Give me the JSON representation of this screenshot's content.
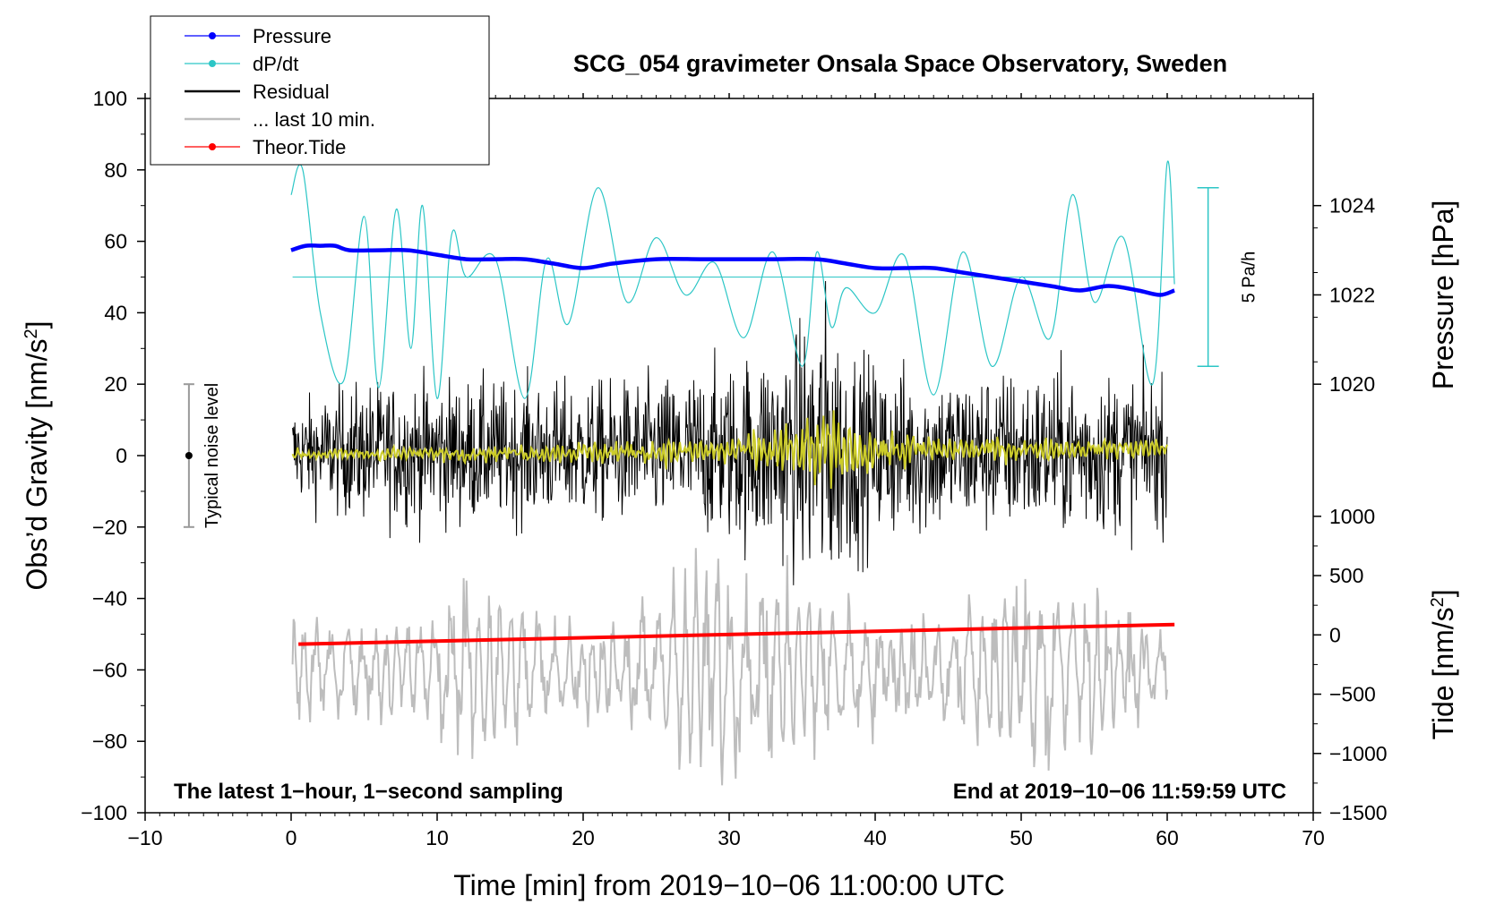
{
  "chart_data": {
    "type": "line",
    "title": "SCG_054 gravimeter Onsala Space Observatory, Sweden",
    "xlabel": "Time [min] from 2019−10−06 11:00:00 UTC",
    "ylabel_left": "Obs’d Gravity [nm/s",
    "ylabel_left_sup": "2",
    "ylabel_left_close": "]",
    "ylabel_right_pressure": "Pressure [hPa]",
    "ylabel_right_tide": "Tide [nm/s",
    "ylabel_right_tide_sup": "2",
    "ylabel_right_tide_close": "]",
    "xlim": [
      -10,
      70
    ],
    "ylim": [
      -100,
      100
    ],
    "x_ticks": [
      -10,
      0,
      10,
      20,
      30,
      40,
      50,
      60,
      70
    ],
    "x_tick_labels": [
      "−10",
      "0",
      "10",
      "20",
      "30",
      "40",
      "50",
      "60",
      "70"
    ],
    "y_ticks": [
      -100,
      -80,
      -60,
      -40,
      -20,
      0,
      20,
      40,
      60,
      80,
      100
    ],
    "y_tick_labels": [
      "−100",
      "−80",
      "−60",
      "−40",
      "−20",
      "0",
      "20",
      "40",
      "60",
      "80",
      "100"
    ],
    "pressure_axis": {
      "ticks": [
        1020,
        1022,
        1024
      ],
      "tick_labels": [
        "1020",
        "1022",
        "1024"
      ],
      "range": [
        1020,
        1024
      ],
      "gravity_equiv": [
        20,
        70
      ]
    },
    "tide_axis": {
      "ticks": [
        -1500,
        -1000,
        -500,
        0,
        500,
        1000
      ],
      "tick_labels": [
        "−1500",
        "−1000",
        "−500",
        "0",
        "500",
        "1000"
      ],
      "range": [
        -1500,
        1000
      ],
      "gravity_equiv": [
        -100,
        -17
      ]
    },
    "series": [
      {
        "name": "Pressure",
        "color": "#0000ff",
        "unit": "hPa",
        "x": [
          0,
          1,
          2,
          3,
          4,
          6,
          8,
          10,
          12,
          14,
          16,
          18,
          20,
          22,
          25,
          28,
          30,
          33,
          36,
          38,
          40,
          42,
          44,
          46,
          48,
          50,
          52,
          54,
          56,
          58,
          59.5,
          60.5
        ],
        "values": [
          1023.0,
          1023.1,
          1023.1,
          1023.1,
          1023.0,
          1023.0,
          1023.0,
          1022.9,
          1022.8,
          1022.8,
          1022.8,
          1022.7,
          1022.6,
          1022.7,
          1022.8,
          1022.8,
          1022.8,
          1022.8,
          1022.8,
          1022.7,
          1022.6,
          1022.6,
          1022.6,
          1022.5,
          1022.4,
          1022.3,
          1022.2,
          1022.1,
          1022.2,
          1022.1,
          1022.0,
          1022.1
        ]
      },
      {
        "name": "dP/dt",
        "color": "#2cc6c6",
        "unit": "gravity-frame",
        "baseline": 50,
        "x": [
          0,
          0.8,
          2,
          3.6,
          5,
          6,
          7.2,
          8.2,
          9,
          10,
          11,
          12,
          14,
          16,
          17.5,
          19,
          21,
          23,
          25,
          27,
          29,
          31,
          33,
          35,
          36,
          37,
          38,
          40,
          42,
          44,
          46,
          48,
          50,
          52,
          53.5,
          55,
          57,
          59,
          60,
          60.5
        ],
        "values": [
          73,
          80,
          40,
          21,
          67,
          19,
          69,
          30,
          70,
          16,
          62,
          50,
          55,
          16,
          55,
          37,
          75,
          43,
          61,
          45,
          54,
          33,
          57,
          25,
          57,
          36,
          47,
          40,
          56,
          17,
          57,
          25,
          50,
          33,
          73,
          43,
          61,
          20,
          82,
          48
        ]
      },
      {
        "name": "Residual",
        "color": "#000000",
        "unit": "nm/s2",
        "x": [
          0,
          5,
          10,
          15,
          20,
          25,
          30,
          35,
          36.5,
          38,
          40,
          45,
          50,
          55,
          60
        ],
        "amplitude": [
          12,
          17,
          18,
          17,
          17,
          18,
          22,
          30,
          40,
          28,
          22,
          20,
          20,
          20,
          18
        ]
      },
      {
        "name": "Residual (smoothed)",
        "color": "#cccc2a",
        "unit": "nm/s2",
        "x": [
          0,
          10,
          20,
          30,
          34,
          37,
          40,
          50,
          60
        ],
        "amplitude": [
          1,
          1.5,
          2,
          3,
          5,
          7,
          4,
          2,
          2
        ]
      },
      {
        "name": "... last 10 min.",
        "color": "#bdbdbd",
        "unit": "nm/s2",
        "baseline": -60,
        "x": [
          0,
          5,
          10,
          12,
          15,
          20,
          25,
          29,
          33,
          37,
          40,
          45,
          49,
          52,
          55,
          60
        ],
        "amplitude": [
          12,
          10,
          11,
          22,
          14,
          10,
          15,
          25,
          23,
          15,
          13,
          12,
          20,
          25,
          16,
          8
        ]
      },
      {
        "name": "Theor.Tide",
        "color": "#ff0000",
        "unit": "nm/s2",
        "x": [
          0.5,
          60.5
        ],
        "values": [
          -52.8,
          -47.3
        ]
      }
    ],
    "legend": {
      "position": "top-left",
      "entries": [
        {
          "label": "Pressure",
          "color": "#0000ff",
          "style": "line-dot"
        },
        {
          "label": "dP/dt",
          "color": "#2cc6c6",
          "style": "line-dot"
        },
        {
          "label": "Residual",
          "color": "#000000",
          "style": "line"
        },
        {
          "label": "... last 10 min.",
          "color": "#bdbdbd",
          "style": "line"
        },
        {
          "label": "Theor.Tide",
          "color": "#ff0000",
          "style": "line-dot"
        }
      ]
    },
    "noise_bar": {
      "x": -7,
      "low": -20,
      "high": 20,
      "center": 0,
      "label": "Typical noise level"
    },
    "rate_bar": {
      "x": 62.8,
      "low": 25,
      "high": 75,
      "label": "5 Pa/h"
    },
    "annotations": {
      "left": "The latest 1−hour, 1−second sampling",
      "right": "End at 2019−10−06 11:59:59 UTC"
    }
  }
}
